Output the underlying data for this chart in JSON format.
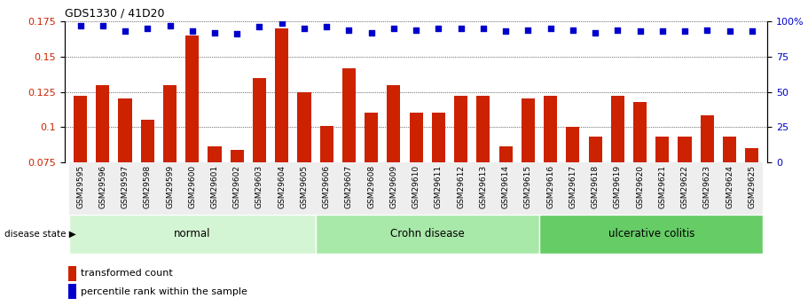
{
  "title": "GDS1330 / 41D20",
  "samples": [
    "GSM29595",
    "GSM29596",
    "GSM29597",
    "GSM29598",
    "GSM29599",
    "GSM29600",
    "GSM29601",
    "GSM29602",
    "GSM29603",
    "GSM29604",
    "GSM29605",
    "GSM29606",
    "GSM29607",
    "GSM29608",
    "GSM29609",
    "GSM29610",
    "GSM29611",
    "GSM29612",
    "GSM29613",
    "GSM29614",
    "GSM29615",
    "GSM29616",
    "GSM29617",
    "GSM29618",
    "GSM29619",
    "GSM29620",
    "GSM29621",
    "GSM29622",
    "GSM29623",
    "GSM29624",
    "GSM29625"
  ],
  "bar_values": [
    0.122,
    0.13,
    0.12,
    0.105,
    0.13,
    0.165,
    0.086,
    0.084,
    0.135,
    0.17,
    0.125,
    0.101,
    0.142,
    0.11,
    0.13,
    0.11,
    0.11,
    0.122,
    0.122,
    0.086,
    0.12,
    0.122,
    0.1,
    0.093,
    0.122,
    0.118,
    0.093,
    0.093,
    0.108,
    0.093,
    0.085
  ],
  "percentile_values": [
    97,
    97,
    93,
    95,
    97,
    93,
    92,
    91,
    96,
    99,
    95,
    96,
    94,
    92,
    95,
    94,
    95,
    95,
    95,
    93,
    94,
    95,
    94,
    92,
    94,
    93,
    93,
    93,
    94,
    93,
    93
  ],
  "groups": [
    {
      "label": "normal",
      "start": 0,
      "end": 10,
      "color": "#d4f5d4"
    },
    {
      "label": "Crohn disease",
      "start": 11,
      "end": 20,
      "color": "#a8e8a8"
    },
    {
      "label": "ulcerative colitis",
      "start": 21,
      "end": 30,
      "color": "#66cc66"
    }
  ],
  "bar_color": "#cc2200",
  "dot_color": "#0000cc",
  "ylim_left": [
    0.075,
    0.175
  ],
  "ylim_right": [
    0,
    100
  ],
  "yticks_left": [
    0.075,
    0.1,
    0.125,
    0.15,
    0.175
  ],
  "yticks_right": [
    0,
    25,
    50,
    75,
    100
  ],
  "background_color": "#ffffff",
  "legend_bar_label": "transformed count",
  "legend_dot_label": "percentile rank within the sample",
  "disease_state_label": "disease state"
}
